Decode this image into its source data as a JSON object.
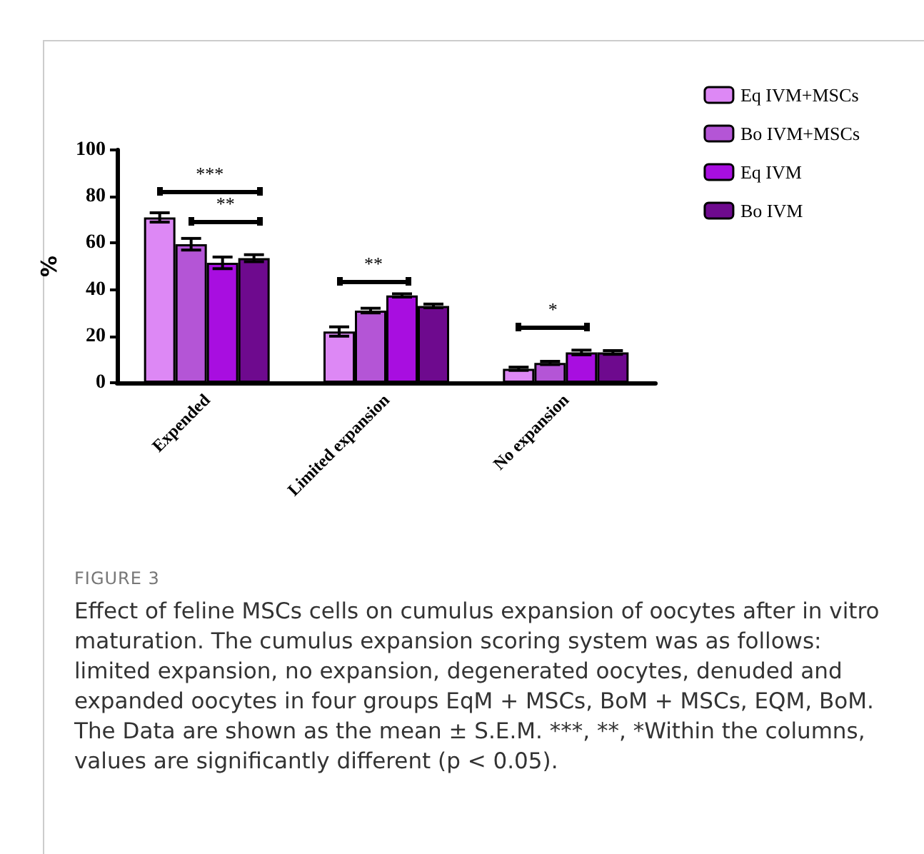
{
  "chart_data": {
    "type": "bar",
    "ylabel": "%",
    "categories": [
      "Expended",
      "Limited expansion",
      "No expansion"
    ],
    "series": [
      {
        "name": "Eq IVM+MSCs",
        "color": "#dd88f5",
        "values": [
          71,
          22,
          6
        ],
        "errors": [
          2,
          2,
          0.7
        ]
      },
      {
        "name": "Bo IVM+MSCs",
        "color": "#b455d6",
        "values": [
          59.5,
          31,
          8.5
        ],
        "errors": [
          2.5,
          1,
          0.7
        ]
      },
      {
        "name": "Eq IVM",
        "color": "#a80ee0",
        "values": [
          51.5,
          37.5,
          13
        ],
        "errors": [
          2.5,
          0.7,
          1
        ]
      },
      {
        "name": "Bo IVM",
        "color": "#6e0a8e",
        "values": [
          53.5,
          33,
          13
        ],
        "errors": [
          1.5,
          0.8,
          0.8
        ]
      }
    ],
    "ylim": [
      0,
      100
    ],
    "yticks": [
      0,
      20,
      40,
      60,
      80,
      100
    ],
    "grid": false,
    "legend": "top right",
    "annotations": [
      "***",
      "**",
      "**",
      "*",
      "FIGURE 3",
      "Effect of feline MSCs cells on cumulus expansion of oocytes after in vitro maturation. The cumulus expansion scoring system was as follows: limited expansion, no expansion, degenerated oocytes, denuded and expanded oocytes in four groups EqM + MSCs, BoM + MSCs, EQM, BoM. The Data are shown as the mean ± S.E.M. ***, **, *Within the columns, values are significantly different (p < 0.05)."
    ]
  }
}
